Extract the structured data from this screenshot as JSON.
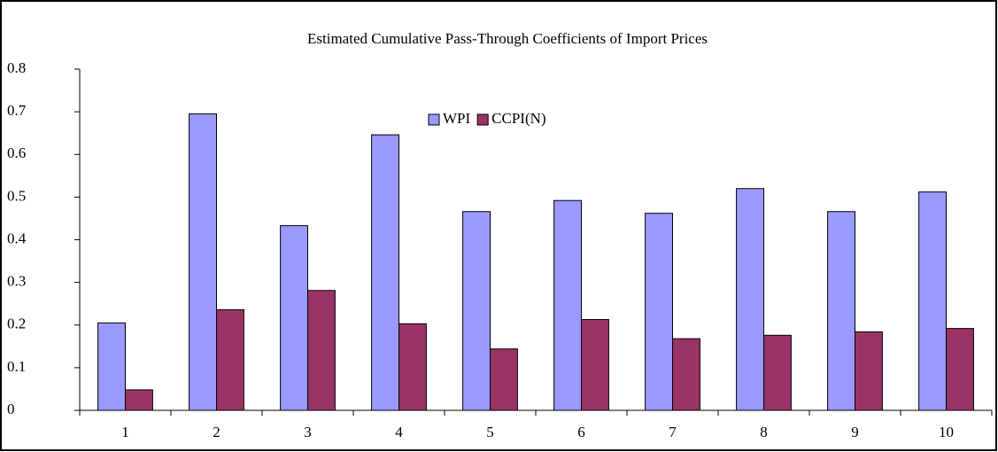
{
  "chart_data": {
    "type": "bar",
    "title": "Estimated Cumulative Pass-Through Coefficients of Import Prices",
    "categories": [
      "1",
      "2",
      "3",
      "4",
      "5",
      "6",
      "7",
      "8",
      "9",
      "10"
    ],
    "series": [
      {
        "name": "WPI",
        "color": "#9999ff",
        "values": [
          0.205,
          0.695,
          0.433,
          0.646,
          0.466,
          0.492,
          0.462,
          0.52,
          0.466,
          0.512
        ]
      },
      {
        "name": "CCPI(N)",
        "color": "#993366",
        "values": [
          0.048,
          0.236,
          0.281,
          0.203,
          0.144,
          0.213,
          0.168,
          0.176,
          0.184,
          0.192
        ]
      }
    ],
    "ylim": [
      0,
      0.8
    ],
    "yticks": [
      0,
      0.1,
      0.2,
      0.3,
      0.4,
      0.5,
      0.6,
      0.7,
      0.8
    ],
    "grid": false,
    "legend": "top"
  }
}
